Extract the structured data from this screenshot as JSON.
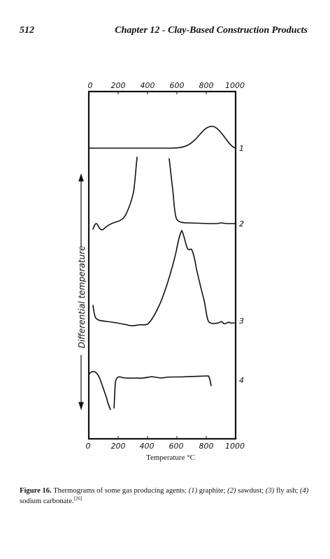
{
  "header": {
    "page_number": "512",
    "running_title": "Chapter 12 - Clay-Based Construction Products"
  },
  "figure": {
    "top_ticks": [
      "0",
      "200",
      "400",
      "600",
      "800",
      "1000"
    ],
    "bottom_ticks": [
      "0",
      "200",
      "400",
      "600",
      "800",
      "1000"
    ],
    "xlabel": "Temperature °C",
    "ylabel": "Differential temperature",
    "curve_numbers": [
      "1",
      "2",
      "3",
      "4"
    ]
  },
  "caption": {
    "label": "Figure 16.",
    "intro": "Thermograms of some gas producing agents: ",
    "items": [
      {
        "num": "(1)",
        "text": " graphite; "
      },
      {
        "num": "(2)",
        "text": " sawdust; "
      },
      {
        "num": "(3)",
        "text": " fly ash; "
      },
      {
        "num": "(4)",
        "text": " sodium carbonate."
      }
    ],
    "ref": "[26]"
  }
}
